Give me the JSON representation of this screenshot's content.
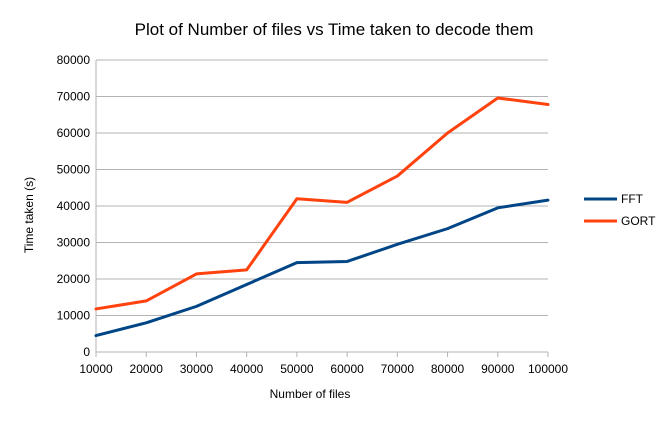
{
  "chart_data": {
    "type": "line",
    "title": "Plot of Number of files vs Time taken to decode them",
    "xlabel": "Number of files",
    "ylabel": "Time taken (s)",
    "x": [
      10000,
      20000,
      30000,
      40000,
      50000,
      60000,
      70000,
      80000,
      90000,
      100000
    ],
    "ylim": [
      0,
      80000
    ],
    "yticks": [
      0,
      10000,
      20000,
      30000,
      40000,
      50000,
      60000,
      70000,
      80000
    ],
    "grid": true,
    "legend_position": "right",
    "series": [
      {
        "name": "FFT",
        "color": "#004586",
        "values": [
          4500,
          8000,
          12500,
          18500,
          24500,
          24800,
          29500,
          33800,
          39500,
          41600
        ]
      },
      {
        "name": "GORT",
        "color": "#ff420e",
        "values": [
          11800,
          14000,
          21400,
          22500,
          42000,
          41000,
          48200,
          60000,
          69600,
          67800
        ]
      }
    ]
  }
}
